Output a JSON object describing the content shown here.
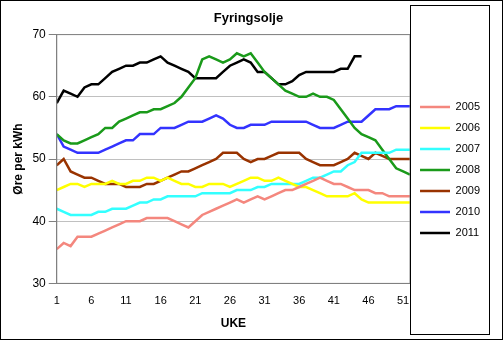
{
  "chart_data": {
    "type": "line",
    "title": "Fyringsolje",
    "x_label": "UKE",
    "y_label": "Øre per kWh",
    "x": [
      1,
      2,
      3,
      4,
      5,
      6,
      7,
      8,
      9,
      10,
      11,
      12,
      13,
      14,
      15,
      16,
      17,
      18,
      19,
      20,
      21,
      22,
      23,
      24,
      25,
      26,
      27,
      28,
      29,
      30,
      31,
      32,
      33,
      34,
      35,
      36,
      37,
      38,
      39,
      40,
      41,
      42,
      43,
      44,
      45,
      46,
      47,
      48,
      49,
      50,
      51,
      52
    ],
    "xlim": [
      1,
      52
    ],
    "xticks": [
      1,
      6,
      11,
      16,
      21,
      26,
      31,
      36,
      41,
      46,
      51
    ],
    "ylim": [
      30,
      70
    ],
    "yticks": [
      30,
      40,
      50,
      60,
      70
    ],
    "grid": true,
    "legend": "right",
    "series": [
      {
        "name": "2005",
        "color": "#f4877e",
        "values": [
          35.5,
          36.5,
          36,
          37.5,
          37.5,
          37.5,
          38,
          38.5,
          39,
          39.5,
          40,
          40,
          40,
          40.5,
          40.5,
          40.5,
          40.5,
          40,
          39.5,
          39,
          40,
          41,
          41.5,
          42,
          42.5,
          43,
          43.5,
          43,
          43.5,
          44,
          43.5,
          44,
          44.5,
          45,
          45,
          45.5,
          46,
          46.5,
          47,
          46.5,
          46,
          46,
          45.5,
          45,
          45,
          45,
          44.5,
          44.5,
          44,
          44,
          44,
          44
        ]
      },
      {
        "name": "2006",
        "color": "#ffff00",
        "values": [
          45,
          45.5,
          46,
          46,
          45.5,
          46,
          46,
          46,
          46.5,
          46,
          46,
          46.5,
          46.5,
          47,
          47,
          46.5,
          47,
          46.5,
          46,
          46,
          45.5,
          45.5,
          46,
          46,
          46,
          45.5,
          46,
          46.5,
          47,
          47,
          46.5,
          46.5,
          47,
          46.5,
          46,
          45.5,
          45.5,
          45,
          44.5,
          44,
          44,
          44,
          44,
          44.5,
          43.5,
          43,
          43,
          43,
          43,
          43,
          43,
          43
        ]
      },
      {
        "name": "2007",
        "color": "#33ffff",
        "values": [
          42,
          41.5,
          41,
          41,
          41,
          41,
          41.5,
          41.5,
          42,
          42,
          42,
          42.5,
          43,
          43,
          43.5,
          43.5,
          44,
          44,
          44,
          44,
          44,
          44.5,
          44.5,
          44.5,
          44.5,
          44.5,
          45,
          45,
          45,
          45.5,
          45.5,
          46,
          46,
          46,
          46,
          46,
          46.5,
          47,
          47,
          47.5,
          48,
          48,
          49,
          49.5,
          51,
          51,
          51,
          51,
          51,
          51.5,
          51.5,
          51.5
        ]
      },
      {
        "name": "2008",
        "color": "#1a9a1a",
        "values": [
          54,
          53,
          52.5,
          52.5,
          53,
          53.5,
          54,
          55,
          55,
          56,
          56.5,
          57,
          57.5,
          57.5,
          58,
          58,
          58.5,
          59,
          60,
          61.5,
          63,
          66,
          66.5,
          66,
          65.5,
          66,
          67,
          66.5,
          67,
          65.5,
          64,
          63,
          62,
          61,
          60.5,
          60,
          60,
          60.5,
          60,
          60,
          59.5,
          58,
          56.5,
          55,
          54,
          53.5,
          53,
          51.5,
          50,
          48.5,
          48,
          47.5
        ]
      },
      {
        "name": "2009",
        "color": "#993300",
        "values": [
          49,
          50,
          48,
          47.5,
          47,
          47,
          46.5,
          46,
          46,
          46,
          45.5,
          45.5,
          45.5,
          46,
          46,
          46.5,
          47,
          47.5,
          48,
          48,
          48.5,
          49,
          49.5,
          50,
          51,
          51,
          51,
          50,
          49.5,
          50,
          50,
          50.5,
          51,
          51,
          51,
          51,
          50,
          49.5,
          49,
          49,
          49,
          49.5,
          50,
          51,
          50.5,
          50,
          51,
          50.5,
          50,
          50,
          50,
          50
        ]
      },
      {
        "name": "2010",
        "color": "#3333ff",
        "values": [
          54,
          52,
          51.5,
          51,
          51,
          51,
          51,
          51.5,
          52,
          52.5,
          53,
          53,
          54,
          54,
          54,
          55,
          55,
          55,
          55.5,
          56,
          56,
          56,
          56.5,
          57,
          56.5,
          55.5,
          55,
          55,
          55.5,
          55.5,
          55.5,
          56,
          56,
          56,
          56,
          56,
          56,
          55.5,
          55,
          55,
          55,
          55.5,
          56,
          56,
          56,
          57,
          58,
          58,
          58,
          58.5,
          58.5,
          58.5
        ]
      },
      {
        "name": "2011",
        "color": "#000000",
        "values": [
          59,
          61,
          60.5,
          60,
          61.5,
          62,
          62,
          63,
          64,
          64.5,
          65,
          65,
          65.5,
          65.5,
          66,
          66.5,
          65.5,
          65,
          64.5,
          64,
          63,
          63,
          63,
          63,
          64,
          65,
          65.5,
          66,
          65.5,
          64,
          64,
          63,
          62,
          62,
          62.5,
          63.5,
          64,
          64,
          64,
          64,
          64,
          64.5,
          64.5,
          66.5,
          66.5,
          null,
          null,
          null,
          null,
          null,
          null,
          null
        ]
      }
    ]
  }
}
